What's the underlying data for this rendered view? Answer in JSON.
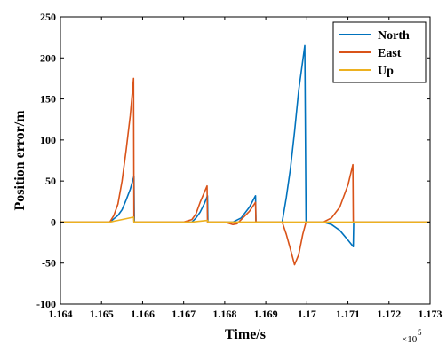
{
  "chart_data": {
    "type": "line",
    "title": "",
    "xlabel": "Time/s",
    "ylabel": "Position error/m",
    "x_exponent_label": "×10",
    "x_exponent_power": "5",
    "xlim": [
      1.164,
      1.173
    ],
    "ylim": [
      -100,
      250
    ],
    "x_ticks": [
      1.164,
      1.165,
      1.166,
      1.167,
      1.168,
      1.169,
      1.17,
      1.171,
      1.172,
      1.173
    ],
    "x_tick_labels": [
      "1.164",
      "1.165",
      "1.166",
      "1.167",
      "1.168",
      "1.169",
      "1.17",
      "1.171",
      "1.172",
      "1.173"
    ],
    "y_ticks": [
      -100,
      -50,
      0,
      50,
      100,
      150,
      200,
      250
    ],
    "y_tick_labels": [
      "-100",
      "-50",
      "0",
      "50",
      "100",
      "150",
      "200",
      "250"
    ],
    "grid": false,
    "legend_position": "top-right",
    "series": [
      {
        "name": "North",
        "color": "#0072BD",
        "points": [
          [
            1.164,
            0
          ],
          [
            1.1652,
            0
          ],
          [
            1.1654,
            8
          ],
          [
            1.1655,
            15
          ],
          [
            1.1656,
            27
          ],
          [
            1.1657,
            40
          ],
          [
            1.16579,
            56
          ],
          [
            1.1658,
            0
          ],
          [
            1.1672,
            0
          ],
          [
            1.1673,
            5
          ],
          [
            1.1674,
            12
          ],
          [
            1.1675,
            22
          ],
          [
            1.16758,
            32
          ],
          [
            1.16759,
            0
          ],
          [
            1.1682,
            0
          ],
          [
            1.1684,
            5
          ],
          [
            1.1686,
            18
          ],
          [
            1.16875,
            32
          ],
          [
            1.16876,
            0
          ],
          [
            1.1694,
            0
          ],
          [
            1.1695,
            30
          ],
          [
            1.1696,
            65
          ],
          [
            1.1697,
            110
          ],
          [
            1.1698,
            160
          ],
          [
            1.16995,
            215
          ],
          [
            1.16998,
            0
          ],
          [
            1.1704,
            0
          ],
          [
            1.1706,
            -3
          ],
          [
            1.1708,
            -10
          ],
          [
            1.171,
            -22
          ],
          [
            1.17113,
            -30
          ],
          [
            1.17114,
            0
          ],
          [
            1.173,
            0
          ]
        ]
      },
      {
        "name": "East",
        "color": "#D95319",
        "points": [
          [
            1.164,
            0
          ],
          [
            1.1652,
            0
          ],
          [
            1.1653,
            8
          ],
          [
            1.1654,
            22
          ],
          [
            1.1655,
            50
          ],
          [
            1.1656,
            88
          ],
          [
            1.1657,
            130
          ],
          [
            1.16578,
            175
          ],
          [
            1.16579,
            0
          ],
          [
            1.167,
            0
          ],
          [
            1.1672,
            3
          ],
          [
            1.1673,
            10
          ],
          [
            1.1674,
            24
          ],
          [
            1.16757,
            44
          ],
          [
            1.16758,
            0
          ],
          [
            1.168,
            0
          ],
          [
            1.1682,
            -3
          ],
          [
            1.1683,
            -2
          ],
          [
            1.1684,
            3
          ],
          [
            1.1686,
            13
          ],
          [
            1.16875,
            24
          ],
          [
            1.16876,
            0
          ],
          [
            1.1694,
            0
          ],
          [
            1.1695,
            -15
          ],
          [
            1.1696,
            -33
          ],
          [
            1.1697,
            -52
          ],
          [
            1.1698,
            -40
          ],
          [
            1.1699,
            -15
          ],
          [
            1.16998,
            0
          ],
          [
            1.1704,
            0
          ],
          [
            1.1706,
            5
          ],
          [
            1.1708,
            18
          ],
          [
            1.171,
            45
          ],
          [
            1.17112,
            70
          ],
          [
            1.17113,
            0
          ],
          [
            1.173,
            0
          ]
        ]
      },
      {
        "name": "Up",
        "color": "#EDB120",
        "points": [
          [
            1.164,
            0
          ],
          [
            1.1652,
            0
          ],
          [
            1.1655,
            3
          ],
          [
            1.16578,
            6
          ],
          [
            1.16579,
            0
          ],
          [
            1.1672,
            0
          ],
          [
            1.16758,
            2
          ],
          [
            1.16759,
            0
          ],
          [
            1.173,
            0
          ]
        ]
      }
    ]
  }
}
